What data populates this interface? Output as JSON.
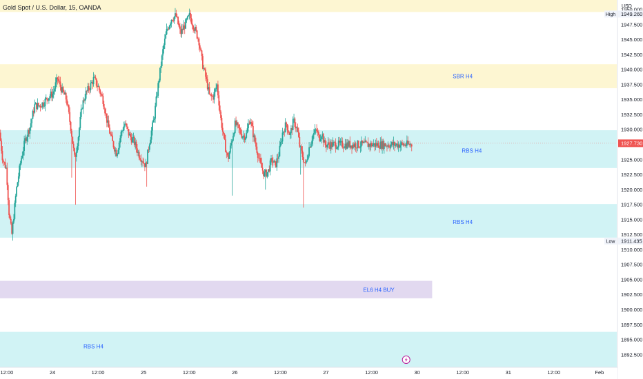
{
  "header": {
    "title": "Gold Spot / U.S. Dollar, 15, OANDA",
    "currency": "USD"
  },
  "colors": {
    "up": "#26a69a",
    "down": "#ef5350",
    "zone_yellow": "#fdf6d2",
    "zone_cyan": "#d1f3f5",
    "zone_purple": "#e2d9f0",
    "label_blue": "#2962ff",
    "price_line": "#ef5350",
    "event_icon": "#b81e9b"
  },
  "chart_data": {
    "type": "candlestick",
    "symbol": "XAUUSD",
    "interval": "15",
    "ylim": [
      1890.4,
      1951.6
    ],
    "y_ticks": [
      "1950.000",
      "1947.500",
      "1945.000",
      "1942.500",
      "1940.000",
      "1937.500",
      "1935.000",
      "1932.500",
      "1930.000",
      "1927.500",
      "1925.000",
      "1922.500",
      "1920.000",
      "1917.500",
      "1915.000",
      "1912.500",
      "1910.000",
      "1907.500",
      "1905.000",
      "1902.500",
      "1900.000",
      "1897.500",
      "1895.000",
      "1892.500"
    ],
    "x_ticks": [
      "12:00",
      "24",
      "12:00",
      "25",
      "12:00",
      "26",
      "12:00",
      "27",
      "12:00",
      "30",
      "12:00",
      "31",
      "12:00",
      "Feb"
    ],
    "x_tick_positions": [
      0.5,
      1,
      1.5,
      2,
      2.5,
      3,
      3.5,
      4,
      4.5,
      5,
      5.5,
      6,
      6.5,
      7
    ],
    "x_range": [
      0.425,
      7.19
    ],
    "last_time": 4.94,
    "current_price": {
      "value": 1927.73,
      "label": "1927.730"
    },
    "high": {
      "tag": "High",
      "value": 1949.26,
      "label": "1949.260"
    },
    "low": {
      "tag": "Low",
      "value": 1911.435,
      "label": "1911.435"
    },
    "zones": [
      {
        "label": "",
        "color": "zone_yellow",
        "y_top": 1951.6,
        "y_bottom": 1949.6,
        "x_end": 7.19
      },
      {
        "label": "SBR H4",
        "color": "zone_yellow",
        "y_top": 1940.9,
        "y_bottom": 1936.9,
        "x_end": 7.19,
        "label_x": 5.5,
        "label_y": 1938.9
      },
      {
        "label": "RBS H4",
        "color": "zone_cyan",
        "y_top": 1929.9,
        "y_bottom": 1923.6,
        "x_end": 7.19,
        "label_x": 5.6,
        "label_y": 1926.5
      },
      {
        "label": "RBS H4",
        "color": "zone_cyan",
        "y_top": 1917.6,
        "y_bottom": 1912.0,
        "x_end": 7.19,
        "label_x": 5.5,
        "label_y": 1914.6
      },
      {
        "label": "EL6  H4 BUY",
        "color": "zone_purple",
        "y_top": 1904.8,
        "y_bottom": 1901.9,
        "x_end": 5.165,
        "label_x": 4.58,
        "label_y": 1903.3
      },
      {
        "label": "RBS H4",
        "color": "zone_cyan",
        "y_top": 1896.3,
        "y_bottom": 1890.4,
        "x_end": 7.19,
        "label_x": 1.45,
        "label_y": 1893.9
      }
    ],
    "path": [
      [
        0.425,
        1929.5
      ],
      [
        0.46,
        1925.0
      ],
      [
        0.5,
        1923.5
      ],
      [
        0.53,
        1916.0
      ],
      [
        0.56,
        1912.5
      ],
      [
        0.61,
        1920.0
      ],
      [
        0.66,
        1925.0
      ],
      [
        0.71,
        1928.5
      ],
      [
        0.76,
        1930.5
      ],
      [
        0.81,
        1934.0
      ],
      [
        0.86,
        1934.0
      ],
      [
        0.91,
        1934.5
      ],
      [
        0.96,
        1935.5
      ],
      [
        1.01,
        1936.0
      ],
      [
        1.06,
        1938.5
      ],
      [
        1.11,
        1936.5
      ],
      [
        1.16,
        1935.0
      ],
      [
        1.21,
        1930.0
      ],
      [
        1.25,
        1925.0
      ],
      [
        1.29,
        1929.0
      ],
      [
        1.33,
        1934.0
      ],
      [
        1.37,
        1936.0
      ],
      [
        1.41,
        1937.0
      ],
      [
        1.46,
        1938.5
      ],
      [
        1.51,
        1937.0
      ],
      [
        1.56,
        1935.0
      ],
      [
        1.61,
        1931.0
      ],
      [
        1.66,
        1928.0
      ],
      [
        1.71,
        1926.0
      ],
      [
        1.76,
        1929.5
      ],
      [
        1.8,
        1931.0
      ],
      [
        1.85,
        1929.0
      ],
      [
        1.9,
        1928.0
      ],
      [
        1.95,
        1926.0
      ],
      [
        1.99,
        1925.0
      ],
      [
        2.03,
        1924.0
      ],
      [
        2.07,
        1928.0
      ],
      [
        2.12,
        1932.0
      ],
      [
        2.17,
        1938.0
      ],
      [
        2.22,
        1943.5
      ],
      [
        2.26,
        1946.5
      ],
      [
        2.31,
        1948.5
      ],
      [
        2.36,
        1949.0
      ],
      [
        2.41,
        1946.0
      ],
      [
        2.46,
        1947.5
      ],
      [
        2.51,
        1949.0
      ],
      [
        2.56,
        1947.0
      ],
      [
        2.61,
        1945.0
      ],
      [
        2.65,
        1941.0
      ],
      [
        2.69,
        1938.5
      ],
      [
        2.73,
        1935.5
      ],
      [
        2.77,
        1935.5
      ],
      [
        2.81,
        1937.5
      ],
      [
        2.85,
        1932.0
      ],
      [
        2.89,
        1928.0
      ],
      [
        2.93,
        1925.0
      ],
      [
        2.97,
        1928.0
      ],
      [
        3.01,
        1931.0
      ],
      [
        3.05,
        1930.0
      ],
      [
        3.09,
        1929.0
      ],
      [
        3.13,
        1929.0
      ],
      [
        3.17,
        1932.0
      ],
      [
        3.21,
        1929.0
      ],
      [
        3.25,
        1926.5
      ],
      [
        3.29,
        1924.0
      ],
      [
        3.33,
        1922.5
      ],
      [
        3.37,
        1923.0
      ],
      [
        3.41,
        1925.0
      ],
      [
        3.45,
        1924.0
      ],
      [
        3.49,
        1926.0
      ],
      [
        3.53,
        1929.5
      ],
      [
        3.57,
        1931.0
      ],
      [
        3.61,
        1929.0
      ],
      [
        3.65,
        1931.5
      ],
      [
        3.69,
        1930.0
      ],
      [
        3.72,
        1927.0
      ],
      [
        3.75,
        1925.5
      ],
      [
        3.78,
        1924.0
      ],
      [
        3.82,
        1927.0
      ],
      [
        3.86,
        1929.0
      ],
      [
        3.9,
        1930.0
      ],
      [
        3.93,
        1928.5
      ],
      [
        3.96,
        1929.5
      ],
      [
        3.99,
        1927.5
      ]
    ],
    "spikes": [
      {
        "t": 0.56,
        "low": 1911.5
      },
      {
        "t": 1.25,
        "low": 1917.5
      },
      {
        "t": 1.21,
        "low": 1922.0
      },
      {
        "t": 2.03,
        "low": 1920.5
      },
      {
        "t": 2.97,
        "low": 1919.0
      },
      {
        "t": 3.33,
        "low": 1920.0
      },
      {
        "t": 3.75,
        "low": 1917.0
      },
      {
        "t": 3.72,
        "low": 1922.5
      }
    ]
  }
}
